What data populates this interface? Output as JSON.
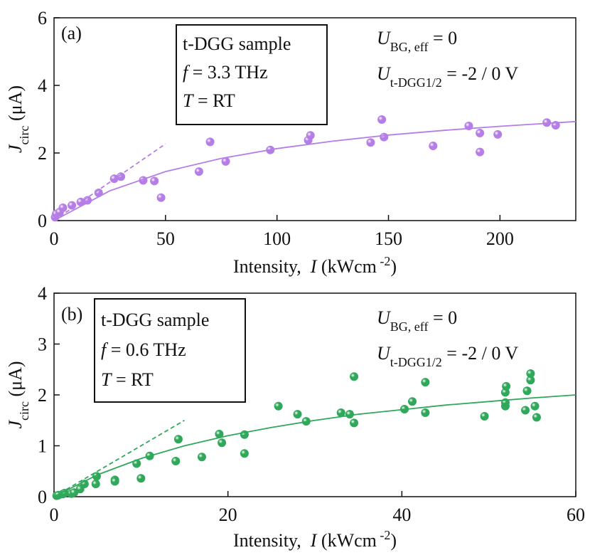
{
  "chart_data": [
    {
      "type": "scatter",
      "panel_label": "(a)",
      "box": [
        [
          {
            "t": "t-DGG sample"
          }
        ],
        [
          {
            "t": "f",
            "s": "i"
          },
          {
            "t": " = 3.3 THz"
          }
        ],
        [
          {
            "t": "T",
            "s": "i"
          },
          {
            "t": " = RT"
          }
        ]
      ],
      "annotations": [
        [
          {
            "t": "U",
            "s": "i"
          },
          {
            "t": "BG, eff",
            "s": "sub"
          },
          {
            "t": " = 0"
          }
        ],
        [
          {
            "t": "U",
            "s": "i"
          },
          {
            "t": "t-DGG1/2",
            "s": "sub"
          },
          {
            "t": " = -2 / 0 V"
          }
        ]
      ],
      "xlabel": [
        {
          "t": "Intensity,  "
        },
        {
          "t": "I",
          "s": "i"
        },
        {
          "t": " (kWcm"
        },
        {
          "t": " -2",
          "s": "sup"
        },
        {
          "t": ")"
        }
      ],
      "ylabel": [
        {
          "t": "J",
          "s": "i"
        },
        {
          "t": "circ",
          "s": "sub"
        },
        {
          "t": " (μA)"
        }
      ],
      "xlim": [
        0,
        234
      ],
      "xticks": [
        0,
        50,
        100,
        150,
        200
      ],
      "ylim": [
        0,
        6
      ],
      "yticks": [
        0,
        2,
        4,
        6
      ],
      "series": [
        {
          "style": "points",
          "color": "#b57ee6",
          "x": [
            0.5,
            1,
            2.5,
            4,
            8,
            12,
            15,
            20,
            27,
            30,
            40,
            45,
            48,
            65,
            70,
            77,
            97,
            114,
            115,
            142,
            147,
            148,
            170,
            186,
            191,
            191,
            199,
            221,
            225
          ],
          "values": [
            0.1,
            0.2,
            0.25,
            0.38,
            0.45,
            0.55,
            0.6,
            0.82,
            1.24,
            1.3,
            1.19,
            1.17,
            0.68,
            1.45,
            2.33,
            1.75,
            2.09,
            2.38,
            2.52,
            2.31,
            2.99,
            2.47,
            2.21,
            2.8,
            2.59,
            2.03,
            2.55,
            2.9,
            2.82
          ]
        },
        {
          "style": "line",
          "color": "#b57ee6",
          "x": [
            0,
            25,
            50,
            75,
            100,
            125,
            150,
            175,
            200,
            234
          ],
          "values": [
            0,
            0.88,
            1.45,
            1.84,
            2.13,
            2.35,
            2.53,
            2.67,
            2.79,
            2.93
          ]
        },
        {
          "style": "dashed",
          "color": "#b57ee6",
          "x": [
            0,
            50
          ],
          "values": [
            0,
            2.27
          ]
        }
      ]
    },
    {
      "type": "scatter",
      "panel_label": "(b)",
      "box": [
        [
          {
            "t": "t-DGG sample"
          }
        ],
        [
          {
            "t": "f",
            "s": "i"
          },
          {
            "t": " = 0.6 THz"
          }
        ],
        [
          {
            "t": "T",
            "s": "i"
          },
          {
            "t": " = RT"
          }
        ]
      ],
      "annotations": [
        [
          {
            "t": "U",
            "s": "i"
          },
          {
            "t": "BG, eff",
            "s": "sub"
          },
          {
            "t": " = 0"
          }
        ],
        [
          {
            "t": "U",
            "s": "i"
          },
          {
            "t": "t-DGG1/2",
            "s": "sub"
          },
          {
            "t": " = -2 / 0 V"
          }
        ]
      ],
      "xlabel": [
        {
          "t": "Intensity,  "
        },
        {
          "t": "I",
          "s": "i"
        },
        {
          "t": " (kWcm"
        },
        {
          "t": " -2",
          "s": "sup"
        },
        {
          "t": ")"
        }
      ],
      "ylabel": [
        {
          "t": "J",
          "s": "i"
        },
        {
          "t": "circ",
          "s": "sub"
        },
        {
          "t": " (μA)"
        }
      ],
      "xlim": [
        0,
        60
      ],
      "xticks": [
        0,
        20,
        40,
        60
      ],
      "ylim": [
        0,
        4
      ],
      "yticks": [
        0,
        1,
        2,
        3,
        4
      ],
      "series": [
        {
          "style": "points",
          "color": "#2fa85a",
          "x": [
            0.3,
            0.5,
            1,
            1.2,
            2,
            2.3,
            3,
            3.5,
            4.8,
            4.9,
            7,
            7,
            9.5,
            10,
            11,
            14,
            14.3,
            17,
            19,
            19.3,
            21.9,
            21.9,
            25.8,
            28,
            29,
            33,
            34,
            34.5,
            34.5,
            40.3,
            41.2,
            42.7,
            42.7,
            49.5,
            51.9,
            51.9,
            51.9,
            52,
            54.2,
            54.4,
            54.8,
            54.8,
            55.3,
            55.5
          ],
          "values": [
            0.02,
            0.03,
            0.05,
            0.07,
            0.06,
            0.08,
            0.15,
            0.25,
            0.25,
            0.4,
            0.33,
            0.3,
            0.65,
            0.36,
            0.8,
            0.7,
            1.13,
            0.78,
            1.23,
            1.06,
            0.85,
            1.22,
            1.78,
            1.62,
            1.48,
            1.65,
            1.62,
            2.36,
            1.45,
            1.72,
            1.87,
            2.25,
            1.65,
            1.58,
            1.78,
            1.85,
            2.05,
            2.17,
            1.7,
            2.08,
            2.29,
            2.42,
            1.78,
            1.56
          ]
        },
        {
          "style": "line",
          "color": "#2fa85a",
          "x": [
            0,
            5,
            10,
            15,
            20,
            25,
            30,
            35,
            40,
            45,
            50,
            55,
            60
          ],
          "values": [
            0,
            0.43,
            0.75,
            1.0,
            1.2,
            1.36,
            1.5,
            1.62,
            1.71,
            1.8,
            1.87,
            1.94,
            2.0
          ]
        },
        {
          "style": "dashed",
          "color": "#2fa85a",
          "x": [
            0,
            15
          ],
          "values": [
            0,
            1.5
          ]
        }
      ]
    }
  ]
}
